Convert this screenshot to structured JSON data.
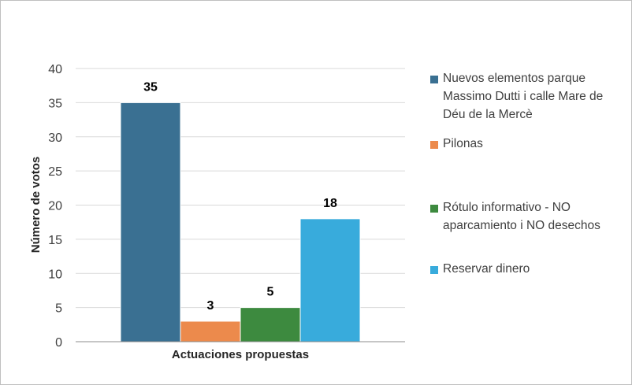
{
  "chart_data": {
    "type": "bar",
    "categories": [
      "Actuaciones propuestas"
    ],
    "xlabel": "Actuaciones propuestas",
    "ylabel": "Número de votos",
    "ylim": [
      0,
      40
    ],
    "yticks": [
      0,
      5,
      10,
      15,
      20,
      25,
      30,
      35,
      40
    ],
    "grid": true,
    "legend_position": "right",
    "series": [
      {
        "name": "Nuevos elementos parque Massimo Dutti i calle Mare de Déu de la Mercè",
        "values": [
          35
        ],
        "color": "#3a7092"
      },
      {
        "name": "Pilonas",
        "values": [
          3
        ],
        "color": "#ec8a4c"
      },
      {
        "name": "Rótulo informativo - NO aparcamiento i NO desechos",
        "values": [
          5
        ],
        "color": "#3d8a3f"
      },
      {
        "name": "Reservar dinero",
        "values": [
          18
        ],
        "color": "#38abdc"
      }
    ]
  }
}
